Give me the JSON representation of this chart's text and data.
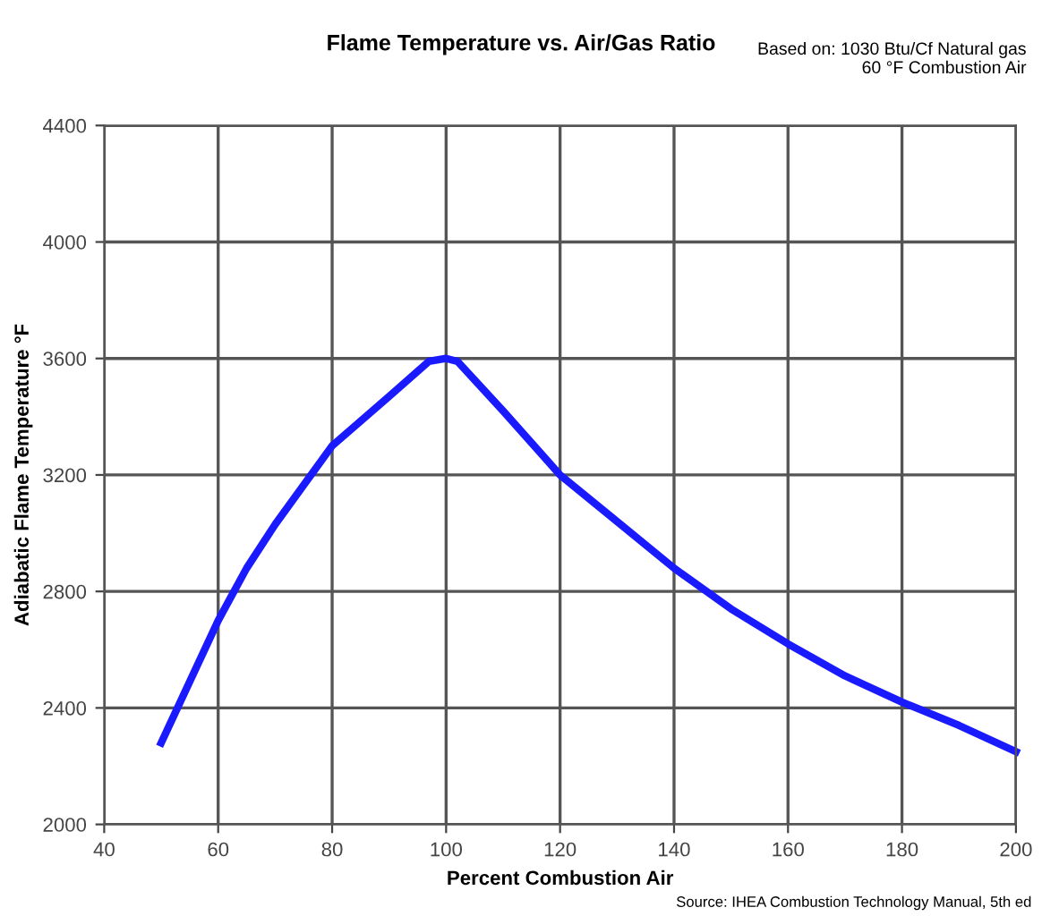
{
  "chart_data": {
    "type": "line",
    "title": "Flame Temperature vs. Air/Gas Ratio",
    "subtitle": "Based on: 1030 Btu/Cf Natural gas\n60 °F Combustion Air",
    "xlabel": "Percent Combustion Air",
    "ylabel": "Adiabatic Flame Temperature °F",
    "annotations": [
      "Source: IHEA Combustion Technology Manual, 5th ed"
    ],
    "x": [
      50,
      60,
      65,
      70,
      80,
      90,
      97,
      100,
      102,
      110,
      120,
      130,
      140,
      150,
      160,
      170,
      180,
      190,
      200
    ],
    "series": [
      {
        "color": "#1a1aff",
        "values": [
          2280,
          2700,
          2880,
          3030,
          3300,
          3470,
          3590,
          3600,
          3590,
          3420,
          3200,
          3040,
          2880,
          2740,
          2620,
          2510,
          2420,
          2340,
          2250
        ]
      }
    ],
    "xlim": [
      40,
      200
    ],
    "ylim": [
      2000,
      4400
    ],
    "xticks": [
      40,
      60,
      80,
      100,
      120,
      140,
      160,
      180,
      200
    ],
    "yticks": [
      2000,
      2400,
      2800,
      3200,
      3600,
      4000,
      4400
    ],
    "grid": true,
    "marker": "none",
    "line_style": "solid"
  }
}
